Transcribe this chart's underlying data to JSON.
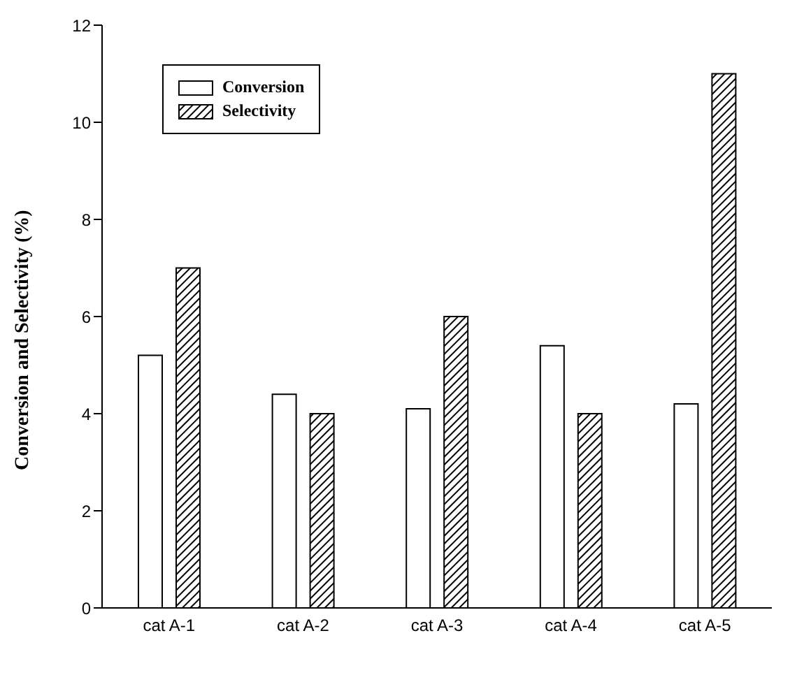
{
  "chart_data": {
    "type": "bar",
    "ylabel": "Conversion and Selectivity (%)",
    "categories": [
      "cat A-1",
      "cat A-2",
      "cat A-3",
      "cat A-4",
      "cat A-5"
    ],
    "series": [
      {
        "name": "Conversion",
        "color": "#ffffff",
        "values": [
          5.2,
          4.4,
          4.1,
          5.4,
          4.2
        ]
      },
      {
        "name": "Selectivity",
        "color": "#000000",
        "values": [
          7,
          4,
          6,
          4,
          11
        ]
      }
    ],
    "ylim": [
      0,
      12
    ],
    "yticks": [
      0,
      2,
      4,
      6,
      8,
      10,
      12
    ],
    "grid": false,
    "legend": "top left"
  }
}
